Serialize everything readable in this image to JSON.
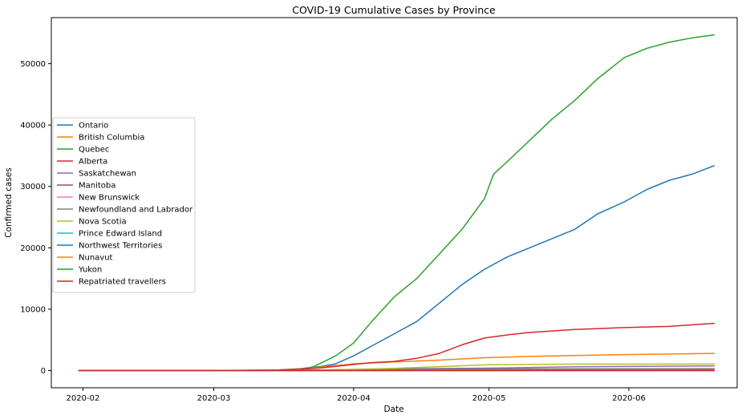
{
  "chart_data": {
    "type": "line",
    "title": "COVID-19 Cumulative Cases by Province",
    "xlabel": "Date",
    "ylabel": "Confirmed cases",
    "x_axis_type": "date",
    "xlim": [
      "2020-01-25",
      "2020-06-25"
    ],
    "ylim": [
      -2800,
      57500
    ],
    "x_ticks": [
      "2020-02-01",
      "2020-03-01",
      "2020-04-01",
      "2020-05-01",
      "2020-06-01"
    ],
    "x_tick_labels": [
      "2020-02",
      "2020-03",
      "2020-04",
      "2020-05",
      "2020-06"
    ],
    "y_ticks": [
      0,
      10000,
      20000,
      30000,
      40000,
      50000
    ],
    "y_tick_labels": [
      "0",
      "10000",
      "20000",
      "30000",
      "40000",
      "50000"
    ],
    "grid": false,
    "legend_position": "center-left",
    "series": [
      {
        "name": "Ontario",
        "color": "#1f77b4",
        "points": [
          [
            "2020-01-31",
            0
          ],
          [
            "2020-03-01",
            2
          ],
          [
            "2020-03-15",
            100
          ],
          [
            "2020-03-20",
            300
          ],
          [
            "2020-03-25",
            700
          ],
          [
            "2020-03-28",
            1100
          ],
          [
            "2020-04-01",
            2400
          ],
          [
            "2020-04-05",
            4000
          ],
          [
            "2020-04-10",
            6000
          ],
          [
            "2020-04-15",
            8000
          ],
          [
            "2020-04-20",
            11000
          ],
          [
            "2020-04-25",
            14000
          ],
          [
            "2020-04-30",
            16500
          ],
          [
            "2020-05-05",
            18500
          ],
          [
            "2020-05-10",
            20000
          ],
          [
            "2020-05-15",
            21500
          ],
          [
            "2020-05-20",
            23000
          ],
          [
            "2020-05-25",
            25500
          ],
          [
            "2020-05-31",
            27500
          ],
          [
            "2020-06-05",
            29500
          ],
          [
            "2020-06-10",
            31000
          ],
          [
            "2020-06-15",
            32000
          ],
          [
            "2020-06-20",
            33400
          ]
        ]
      },
      {
        "name": "British Columbia",
        "color": "#ff7f0e",
        "points": [
          [
            "2020-01-31",
            0
          ],
          [
            "2020-03-01",
            8
          ],
          [
            "2020-03-15",
            70
          ],
          [
            "2020-03-20",
            270
          ],
          [
            "2020-03-25",
            600
          ],
          [
            "2020-04-01",
            1100
          ],
          [
            "2020-04-10",
            1400
          ],
          [
            "2020-04-20",
            1700
          ],
          [
            "2020-04-30",
            2100
          ],
          [
            "2020-05-10",
            2300
          ],
          [
            "2020-05-20",
            2450
          ],
          [
            "2020-05-31",
            2600
          ],
          [
            "2020-06-10",
            2700
          ],
          [
            "2020-06-20",
            2800
          ]
        ]
      },
      {
        "name": "Quebec",
        "color": "#2ca02c",
        "points": [
          [
            "2020-01-31",
            0
          ],
          [
            "2020-03-01",
            1
          ],
          [
            "2020-03-15",
            30
          ],
          [
            "2020-03-20",
            150
          ],
          [
            "2020-03-23",
            600
          ],
          [
            "2020-03-25",
            1300
          ],
          [
            "2020-03-28",
            2400
          ],
          [
            "2020-04-01",
            4500
          ],
          [
            "2020-04-05",
            8000
          ],
          [
            "2020-04-10",
            12000
          ],
          [
            "2020-04-15",
            15000
          ],
          [
            "2020-04-20",
            19000
          ],
          [
            "2020-04-25",
            23000
          ],
          [
            "2020-04-30",
            28000
          ],
          [
            "2020-05-02",
            32000
          ],
          [
            "2020-05-05",
            34000
          ],
          [
            "2020-05-10",
            37500
          ],
          [
            "2020-05-15",
            41000
          ],
          [
            "2020-05-20",
            44000
          ],
          [
            "2020-05-25",
            47500
          ],
          [
            "2020-05-31",
            51000
          ],
          [
            "2020-06-05",
            52500
          ],
          [
            "2020-06-10",
            53500
          ],
          [
            "2020-06-15",
            54200
          ],
          [
            "2020-06-20",
            54700
          ]
        ]
      },
      {
        "name": "Alberta",
        "color": "#d62728",
        "points": [
          [
            "2020-01-31",
            0
          ],
          [
            "2020-03-05",
            1
          ],
          [
            "2020-03-15",
            50
          ],
          [
            "2020-03-20",
            200
          ],
          [
            "2020-03-25",
            450
          ],
          [
            "2020-04-01",
            1000
          ],
          [
            "2020-04-05",
            1300
          ],
          [
            "2020-04-10",
            1500
          ],
          [
            "2020-04-15",
            2000
          ],
          [
            "2020-04-20",
            2800
          ],
          [
            "2020-04-25",
            4200
          ],
          [
            "2020-04-30",
            5300
          ],
          [
            "2020-05-05",
            5800
          ],
          [
            "2020-05-10",
            6200
          ],
          [
            "2020-05-20",
            6700
          ],
          [
            "2020-05-31",
            7000
          ],
          [
            "2020-06-10",
            7200
          ],
          [
            "2020-06-20",
            7700
          ]
        ]
      },
      {
        "name": "Saskatchewan",
        "color": "#9467bd",
        "points": [
          [
            "2020-01-31",
            0
          ],
          [
            "2020-03-12",
            1
          ],
          [
            "2020-03-25",
            90
          ],
          [
            "2020-04-10",
            280
          ],
          [
            "2020-05-01",
            400
          ],
          [
            "2020-05-20",
            620
          ],
          [
            "2020-06-20",
            750
          ]
        ]
      },
      {
        "name": "Manitoba",
        "color": "#8c564b",
        "points": [
          [
            "2020-01-31",
            0
          ],
          [
            "2020-03-12",
            1
          ],
          [
            "2020-03-25",
            40
          ],
          [
            "2020-04-10",
            240
          ],
          [
            "2020-05-01",
            270
          ],
          [
            "2020-06-20",
            300
          ]
        ]
      },
      {
        "name": "New Brunswick",
        "color": "#e377c2",
        "points": [
          [
            "2020-01-31",
            0
          ],
          [
            "2020-03-12",
            1
          ],
          [
            "2020-03-25",
            30
          ],
          [
            "2020-04-10",
            110
          ],
          [
            "2020-05-01",
            120
          ],
          [
            "2020-06-20",
            160
          ]
        ]
      },
      {
        "name": "Newfoundland and Labrador",
        "color": "#7f7f7f",
        "points": [
          [
            "2020-01-31",
            0
          ],
          [
            "2020-03-15",
            1
          ],
          [
            "2020-03-25",
            100
          ],
          [
            "2020-04-10",
            240
          ],
          [
            "2020-05-01",
            260
          ],
          [
            "2020-06-20",
            260
          ]
        ]
      },
      {
        "name": "Nova Scotia",
        "color": "#bcbd22",
        "points": [
          [
            "2020-01-31",
            0
          ],
          [
            "2020-03-15",
            1
          ],
          [
            "2020-03-25",
            70
          ],
          [
            "2020-04-10",
            370
          ],
          [
            "2020-04-20",
            650
          ],
          [
            "2020-05-01",
            950
          ],
          [
            "2020-05-20",
            1050
          ],
          [
            "2020-06-20",
            1060
          ]
        ]
      },
      {
        "name": "Prince Edward Island",
        "color": "#17becf",
        "points": [
          [
            "2020-01-31",
            0
          ],
          [
            "2020-03-15",
            1
          ],
          [
            "2020-04-10",
            25
          ],
          [
            "2020-06-20",
            27
          ]
        ]
      },
      {
        "name": "Northwest Territories",
        "color": "#1f77b4",
        "points": [
          [
            "2020-01-31",
            0
          ],
          [
            "2020-03-20",
            1
          ],
          [
            "2020-04-10",
            5
          ],
          [
            "2020-06-20",
            5
          ]
        ]
      },
      {
        "name": "Nunavut",
        "color": "#ff7f0e",
        "points": [
          [
            "2020-01-31",
            0
          ],
          [
            "2020-06-20",
            0
          ]
        ]
      },
      {
        "name": "Yukon",
        "color": "#2ca02c",
        "points": [
          [
            "2020-01-31",
            0
          ],
          [
            "2020-03-20",
            1
          ],
          [
            "2020-04-10",
            8
          ],
          [
            "2020-06-20",
            11
          ]
        ]
      },
      {
        "name": "Repatriated travellers",
        "color": "#d62728",
        "points": [
          [
            "2020-01-31",
            0
          ],
          [
            "2020-03-01",
            0
          ],
          [
            "2020-03-08",
            13
          ],
          [
            "2020-06-20",
            13
          ]
        ]
      }
    ]
  }
}
